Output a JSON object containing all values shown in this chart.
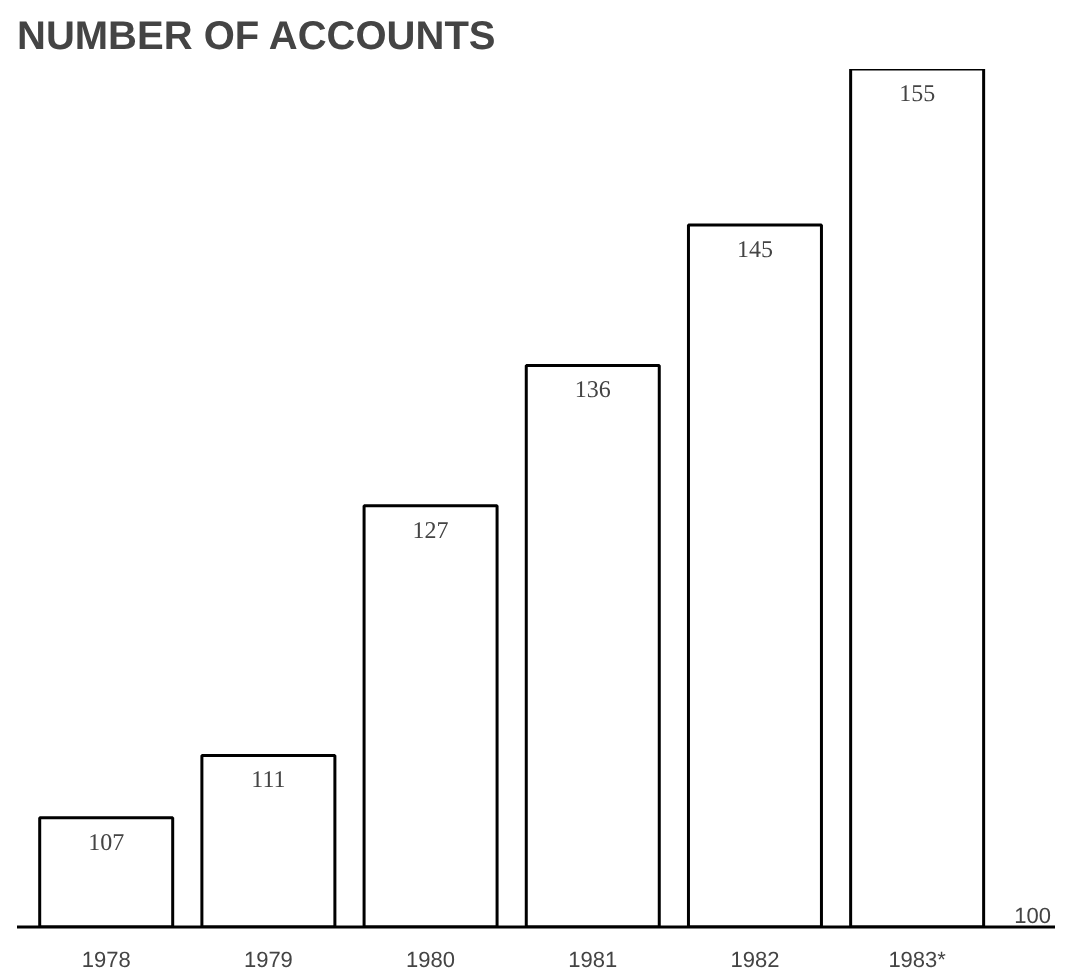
{
  "chart_data": {
    "type": "bar",
    "title": "NUMBER OF ACCOUNTS",
    "categories": [
      "1978",
      "1979",
      "1980",
      "1981",
      "1982",
      "1983*"
    ],
    "values": [
      107,
      111,
      127,
      136,
      145,
      155
    ],
    "color": "#ffffff",
    "ylim": [
      100,
      155
    ],
    "annotations": [
      "100"
    ],
    "data_labels": true
  }
}
